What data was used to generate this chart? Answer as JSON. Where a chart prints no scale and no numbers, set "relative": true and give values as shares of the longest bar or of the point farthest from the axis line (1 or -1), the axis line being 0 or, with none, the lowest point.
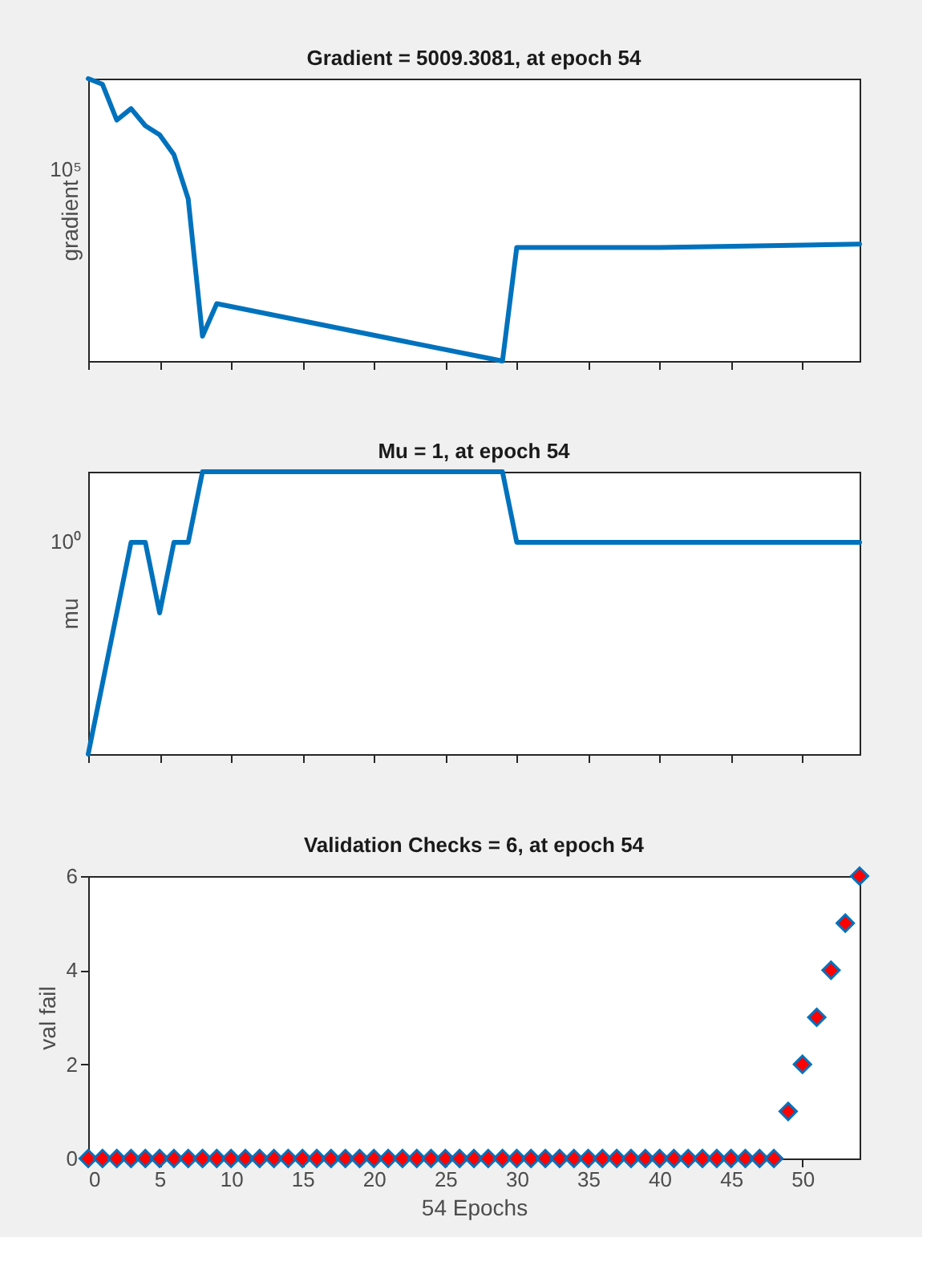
{
  "chart_data": [
    {
      "type": "line",
      "title": "Gradient = 5009.3081, at epoch 54",
      "ylabel": "gradient",
      "relative": true,
      "tick_labels": false,
      "grid": false,
      "line_style": "solid",
      "marker": "none",
      "annotations": [
        "10⁵"
      ],
      "xlim": [
        0,
        54
      ],
      "xticks": [
        0,
        5,
        10,
        15,
        20,
        25,
        30,
        35,
        40,
        45,
        50
      ],
      "series": [
        {
          "color": "#0072bd",
          "x": [
            0,
            1,
            2,
            3,
            4,
            5,
            6,
            7,
            8,
            9,
            29,
            30,
            40,
            54
          ],
          "values": [
            1,
            0.98,
            0.853,
            0.894,
            0.833,
            0.801,
            0.731,
            0.574,
            0.088,
            0.203,
            0,
            0.402,
            0.402,
            0.414
          ]
        }
      ]
    },
    {
      "type": "line",
      "title": "Mu = 1, at epoch 54",
      "ylabel": "mu",
      "relative": true,
      "tick_labels": false,
      "grid": false,
      "line_style": "solid",
      "marker": "none",
      "annotations": [
        "10⁰"
      ],
      "xlim": [
        0,
        54
      ],
      "xticks": [
        0,
        5,
        10,
        15,
        20,
        25,
        30,
        35,
        40,
        45,
        50
      ],
      "series": [
        {
          "color": "#0072bd",
          "x": [
            0,
            1,
            2,
            3,
            4,
            5,
            6,
            7,
            8,
            29,
            30,
            54
          ],
          "values": [
            0,
            0.25,
            0.5,
            0.75,
            0.75,
            0.5,
            0.75,
            0.75,
            1,
            1,
            0.75,
            0.75
          ]
        }
      ]
    },
    {
      "type": "scatter",
      "title": "Validation Checks = 6, at epoch 54",
      "ylabel": "val fail",
      "xlabel": "54 Epochs",
      "grid": false,
      "marker": "diamond",
      "xlim": [
        0,
        54
      ],
      "xticks": [
        0,
        5,
        10,
        15,
        20,
        25,
        30,
        35,
        40,
        45,
        50
      ],
      "ylim": [
        0,
        6
      ],
      "yticks": [
        0,
        2,
        4,
        6
      ],
      "series": [
        {
          "color": "#ff0000",
          "x": [
            0,
            1,
            2,
            3,
            4,
            5,
            6,
            7,
            8,
            9,
            10,
            11,
            12,
            13,
            14,
            15,
            16,
            17,
            18,
            19,
            20,
            21,
            22,
            23,
            24,
            25,
            26,
            27,
            28,
            29,
            30,
            31,
            32,
            33,
            34,
            35,
            36,
            37,
            38,
            39,
            40,
            41,
            42,
            43,
            44,
            45,
            46,
            47,
            48,
            49,
            50,
            51,
            52,
            53,
            54
          ],
          "values": [
            0,
            0,
            0,
            0,
            0,
            0,
            0,
            0,
            0,
            0,
            0,
            0,
            0,
            0,
            0,
            0,
            0,
            0,
            0,
            0,
            0,
            0,
            0,
            0,
            0,
            0,
            0,
            0,
            0,
            0,
            0,
            0,
            0,
            0,
            0,
            0,
            0,
            0,
            0,
            0,
            0,
            0,
            0,
            0,
            0,
            0,
            0,
            0,
            0,
            1,
            2,
            3,
            4,
            5,
            6
          ]
        }
      ]
    }
  ]
}
